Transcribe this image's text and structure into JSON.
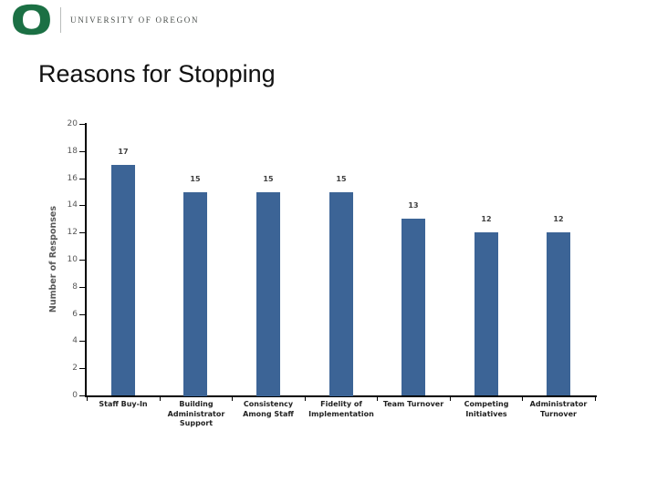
{
  "logo": {
    "org_name": "UNIVERSITY OF OREGON",
    "o_color": "#1b7044",
    "text_color": "#4a4f4c"
  },
  "slide": {
    "title": "Reasons for Stopping"
  },
  "chart_data": {
    "type": "bar",
    "title": "",
    "categories": [
      "Staff Buy-In",
      "Building Administrator Support",
      "Consistency Among Staff",
      "Fidelity of Implementation",
      "Team Turnover",
      "Competing Initiatives",
      "Administrator Turnover"
    ],
    "values": [
      17,
      15,
      15,
      15,
      13,
      12,
      12
    ],
    "data_labels": [
      "17",
      "15",
      "15",
      "15",
      "13",
      "12",
      "12"
    ],
    "xlabel": "",
    "ylabel": "Number of Responses",
    "ylim": [
      0,
      20
    ],
    "ytick_step": 2,
    "ytick_labels": [
      "0",
      "2",
      "4",
      "6",
      "8",
      "10",
      "12",
      "14",
      "16",
      "18",
      "20"
    ],
    "grid": false,
    "legend": false,
    "bar_color": "#3c6496",
    "axis_color": "#000000",
    "ytick_label_color": "#595959",
    "yaxis_title_color": "#595959",
    "data_label_color": "#3f3f3f",
    "category_label_color": "#1f1f1f"
  }
}
